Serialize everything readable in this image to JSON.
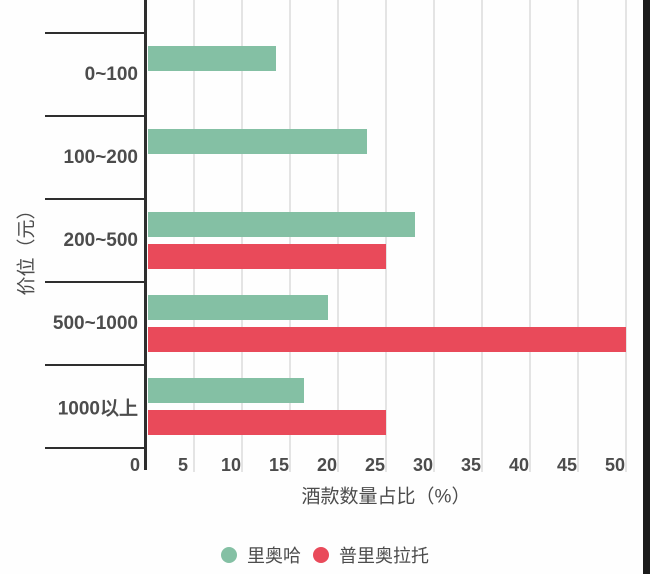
{
  "chart_data": {
    "type": "bar",
    "orientation": "horizontal",
    "title": "",
    "categories": [
      "0~100",
      "100~200",
      "200~500",
      "500~1000",
      "1000以上"
    ],
    "series": [
      {
        "name": "里奥哈",
        "color": "#84C0A4",
        "values": [
          13.5,
          23,
          28,
          19,
          16.5
        ]
      },
      {
        "name": "普里奥拉托",
        "color": "#E94A5A",
        "values": [
          0,
          0,
          25,
          50,
          25
        ]
      }
    ],
    "xlabel": "酒款数量占比（%）",
    "ylabel": "价位（元）",
    "x_ticks": [
      0,
      5,
      10,
      15,
      20,
      25,
      30,
      35,
      40,
      45,
      50
    ],
    "xlim": [
      0,
      52
    ],
    "grid": true,
    "legend_position": "bottom",
    "colors": {
      "grid_line": "#e4e4e4",
      "axis_line": "#2e2e2e",
      "text": "#4c4c4c",
      "background": "#fefefe",
      "edge_strip": "#1b1b1b"
    }
  }
}
